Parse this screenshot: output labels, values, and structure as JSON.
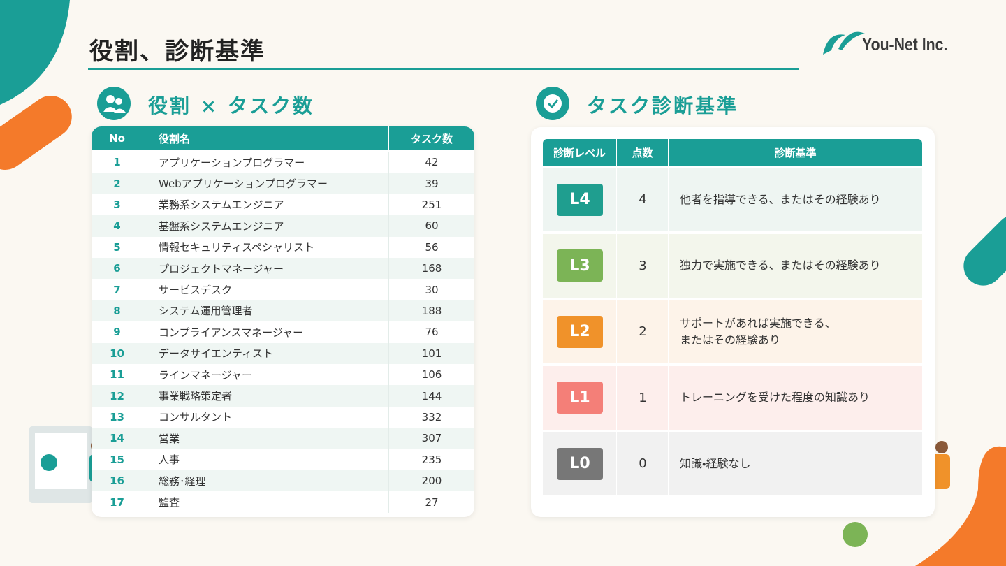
{
  "header": {
    "title": "役割、診断基準",
    "logo": "You-Net Inc."
  },
  "roles": {
    "heading": "役割 × タスク数",
    "columns": [
      "No",
      "役割名",
      "タスク数"
    ],
    "rows": [
      [
        1,
        "アプリケーションプログラマー",
        42
      ],
      [
        2,
        "Webアプリケーションプログラマー",
        39
      ],
      [
        3,
        "業務系システムエンジニア",
        251
      ],
      [
        4,
        "基盤系システムエンジニア",
        60
      ],
      [
        5,
        "情報セキュリティスペシャリスト",
        56
      ],
      [
        6,
        "プロジェクトマネージャー",
        168
      ],
      [
        7,
        "サービスデスク",
        30
      ],
      [
        8,
        "システム運用管理者",
        188
      ],
      [
        9,
        "コンプライアンスマネージャー",
        76
      ],
      [
        10,
        "データサイエンティスト",
        101
      ],
      [
        11,
        "ラインマネージャー",
        106
      ],
      [
        12,
        "事業戦略策定者",
        144
      ],
      [
        13,
        "コンサルタント",
        332
      ],
      [
        14,
        "営業",
        307
      ],
      [
        15,
        "人事",
        235
      ],
      [
        16,
        "総務･経理",
        200
      ],
      [
        17,
        "監査",
        27
      ]
    ]
  },
  "criteria": {
    "heading": "タスク診断基準",
    "columns": [
      "診断レベル",
      "点数",
      "診断基準"
    ],
    "rows": [
      {
        "level": "L4",
        "score": 4,
        "description": "他者を指導できる、またはその経験あり",
        "color": "#1f9e8f",
        "background": "#eef5f2"
      },
      {
        "level": "L3",
        "score": 3,
        "description": "独力で実施できる、またはその経験あり",
        "color": "#7cb456",
        "background": "#f3f6ec"
      },
      {
        "level": "L2",
        "score": 2,
        "description": "サポートがあれば実施できる、\nまたはその経験あり",
        "color": "#f0922a",
        "background": "#fdf3e9"
      },
      {
        "level": "L1",
        "score": 1,
        "description": "トレーニングを受けた程度の知識あり",
        "color": "#f47f78",
        "background": "#fdeeec"
      },
      {
        "level": "L0",
        "score": 0,
        "description": "知識・経験なし",
        "color": "#777777",
        "background": "#f1f1f1"
      }
    ]
  }
}
